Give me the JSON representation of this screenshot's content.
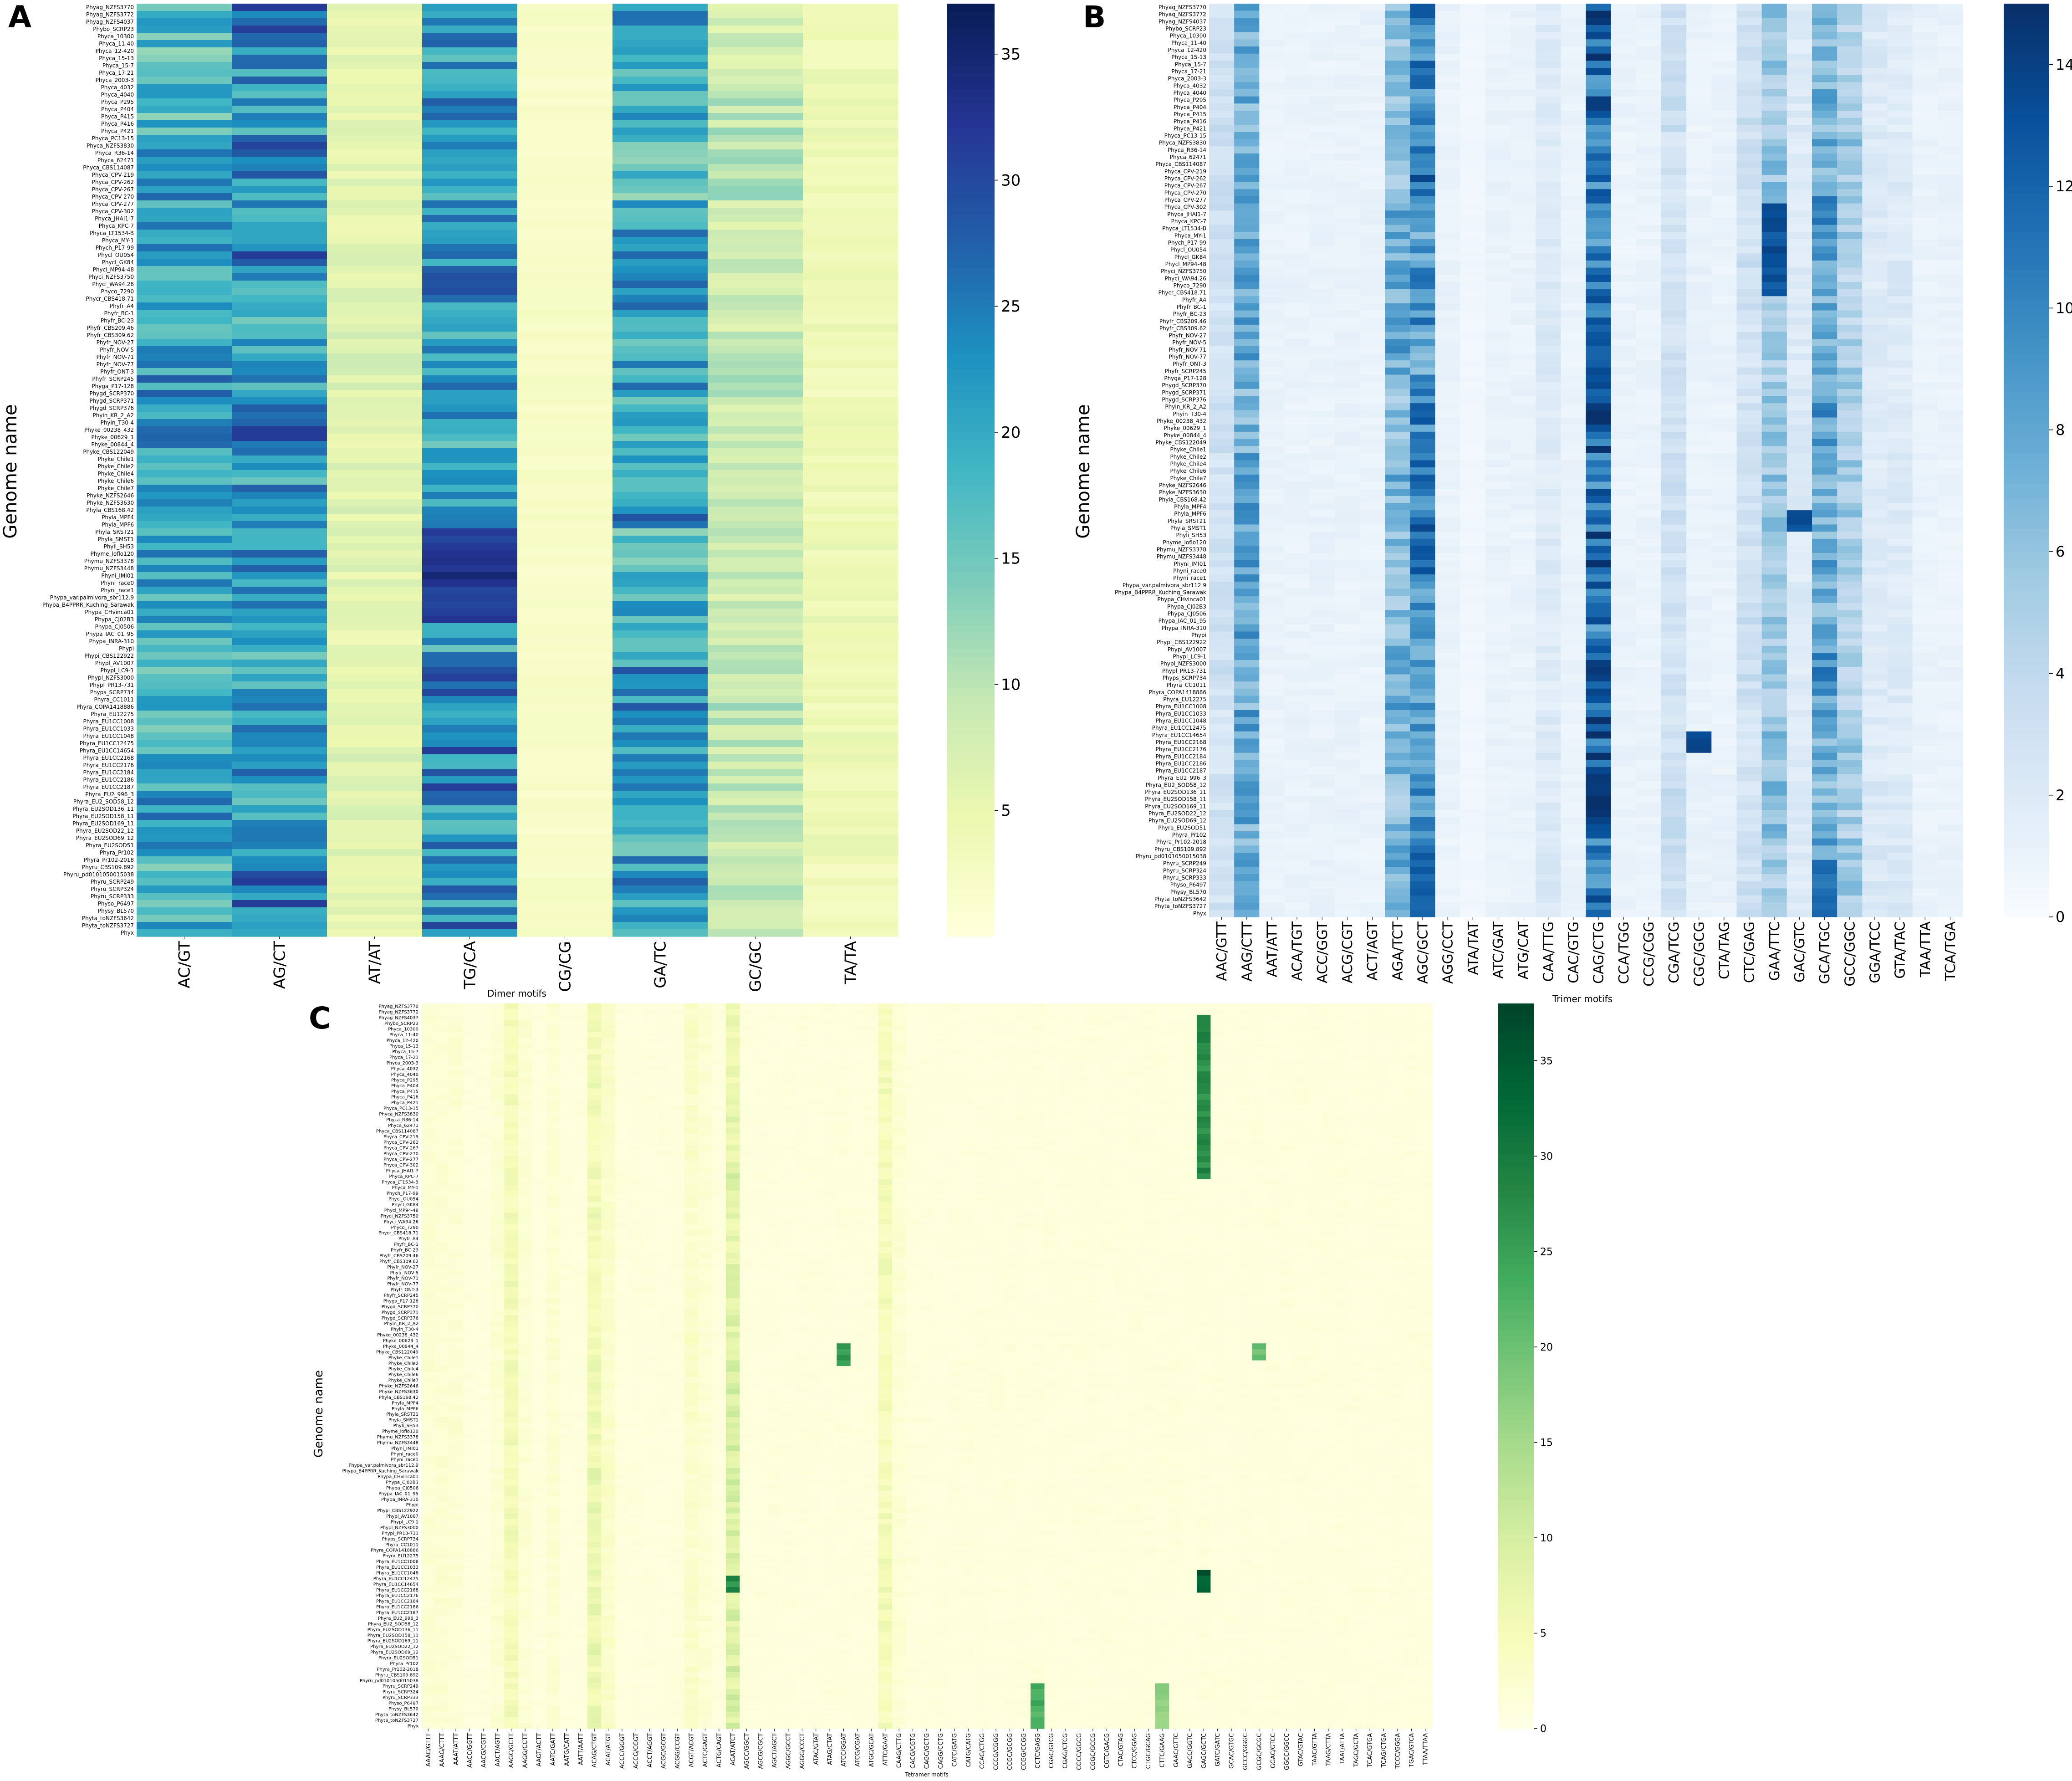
{
  "figure": {
    "panels": [
      {
        "letter": "A",
        "xlabel": "Dimer motifs",
        "ylabel": "Genome name"
      },
      {
        "letter": "B",
        "xlabel": "Trimer motifs",
        "ylabel": "Genome name"
      },
      {
        "letter": "C",
        "xlabel": "Tetramer motifs",
        "ylabel": "Genome name"
      }
    ]
  },
  "chart_data": [
    {
      "type": "heatmap",
      "panel": "A",
      "colormap": "YlGnBu",
      "colors": [
        "#ffffd9",
        "#edf8b1",
        "#c7e9b4",
        "#7fcdbb",
        "#41b6c4",
        "#1d91c0",
        "#225ea8",
        "#253494",
        "#081d58"
      ],
      "xlabel": "Dimer motifs",
      "ylabel": "Genome name",
      "vmin": 0,
      "vmax": 37,
      "colorbar_ticks": [
        5,
        10,
        15,
        20,
        25,
        30,
        35
      ],
      "columns": [
        "AC/GT",
        "AG/CT",
        "AT/AT",
        "TG/CA",
        "CG/CG",
        "GA/TC",
        "GC/GC",
        "TA/TA"
      ],
      "column_baseline": [
        20,
        22,
        6,
        24,
        2,
        20,
        9,
        4
      ],
      "hotspots": [
        {
          "column": 3,
          "row_start": 72,
          "row_end": 84,
          "value": 35
        },
        {
          "column": 3,
          "row_start": 36,
          "row_end": 40,
          "value": 30
        },
        {
          "column": 0,
          "row_start": 160,
          "row_end": 162,
          "value": 30
        },
        {
          "column": 3,
          "row_start": 160,
          "row_end": 162,
          "value": 33
        }
      ]
    },
    {
      "type": "heatmap",
      "panel": "B",
      "colormap": "Blues",
      "colors": [
        "#f7fbff",
        "#deebf7",
        "#c6dbef",
        "#9ecae1",
        "#6baed6",
        "#4292c6",
        "#2171b5",
        "#08519c",
        "#08306b"
      ],
      "xlabel": "Trimer motifs",
      "ylabel": "Genome name",
      "vmin": 0,
      "vmax": 15,
      "colorbar_ticks": [
        0,
        2,
        4,
        6,
        8,
        10,
        12,
        14
      ],
      "columns": [
        "AAC/GTT",
        "AAG/CTT",
        "AAT/ATT",
        "ACA/TGT",
        "ACC/GGT",
        "ACG/CGT",
        "ACT/AGT",
        "AGA/TCT",
        "AGC/GCT",
        "AGG/CCT",
        "ATA/TAT",
        "ATC/GAT",
        "ATG/CAT",
        "CAA/TTG",
        "CAC/GTG",
        "CAG/CTG",
        "CCA/TGG",
        "CCG/CGG",
        "CGA/TCG",
        "CGC/GCG",
        "CTA/TAG",
        "CTC/GAG",
        "GAA/TTC",
        "GAC/GTC",
        "GCA/TGC",
        "GCC/GGC",
        "GGA/TCC",
        "GTA/TAC",
        "TAA/TTA",
        "TCA/TGA"
      ],
      "column_baseline": [
        3,
        8,
        1,
        1,
        1,
        1,
        1,
        7,
        10,
        1,
        0.5,
        1,
        1,
        2,
        1,
        12,
        1,
        1,
        3,
        1,
        1,
        3,
        6,
        2,
        8,
        5,
        2,
        2,
        1,
        1
      ],
      "hotspots": [
        {
          "column": 22,
          "row_start": 28,
          "row_end": 40,
          "value": 14
        },
        {
          "column": 19,
          "row_start": 102,
          "row_end": 104,
          "value": 15
        },
        {
          "column": 23,
          "row_start": 71,
          "row_end": 73,
          "value": 14
        },
        {
          "column": 15,
          "row_start": 45,
          "row_end": 55,
          "value": 14
        },
        {
          "column": 8,
          "row_start": 120,
          "row_end": 150,
          "value": 13
        },
        {
          "column": 24,
          "row_start": 120,
          "row_end": 150,
          "value": 12
        }
      ]
    },
    {
      "type": "heatmap",
      "panel": "C",
      "colormap": "YlGn",
      "colors": [
        "#ffffe5",
        "#f7fcb9",
        "#d9f0a3",
        "#addd8e",
        "#78c679",
        "#41ab5d",
        "#238443",
        "#006837",
        "#004529"
      ],
      "xlabel": "Tetramer motifs",
      "ylabel": "Genome name",
      "vmin": 0,
      "vmax": 38,
      "colorbar_ticks": [
        0,
        5,
        10,
        15,
        20,
        25,
        30,
        35
      ],
      "columns": [
        "AAAC/GTTT",
        "AAAG/CTTT",
        "AAAT/ATTT",
        "AACC/GGTT",
        "AACG/CGTT",
        "AACT/AGTT",
        "AAGC/GCTT",
        "AAGG/CCTT",
        "AAGT/ACTT",
        "AATC/GATT",
        "AATG/CATT",
        "AATT/AATT",
        "ACAG/CTGT",
        "ACAT/ATGT",
        "ACCC/GGGT",
        "ACCG/CGGT",
        "ACCT/AGGT",
        "ACGC/GCGT",
        "ACGG/CCGT",
        "ACGT/ACGT",
        "ACTC/GAGT",
        "ACTG/CAGT",
        "AGAT/ATCT",
        "AGCC/GGCT",
        "AGCG/CGCT",
        "AGCT/AGCT",
        "AGGC/GCCT",
        "AGGG/CCCT",
        "ATAC/GTAT",
        "ATAG/CTAT",
        "ATCC/GGAT",
        "ATCG/CGAT",
        "ATGC/GCAT",
        "ATTC/GAAT",
        "CAAG/CTTG",
        "CACG/CGTG",
        "CAGC/GCTG",
        "CAGG/CCTG",
        "CATC/GATG",
        "CATG/CATG",
        "CCAG/CTGG",
        "CCCG/CGGG",
        "CCGC/GCGG",
        "CCGG/CCGG",
        "CCTC/GAGG",
        "CGAC/GTCG",
        "CGAG/CTCG",
        "CGCC/GGCG",
        "CGGC/GCCG",
        "CGTC/GACG",
        "CTAC/GTAG",
        "CTCC/GGAG",
        "CTGC/GCAG",
        "CTTC/GAAG",
        "GAAC/GTTC",
        "GACC/GGTC",
        "GAGC/GCTC",
        "GATC/GATC",
        "GCAC/GTGC",
        "GCCC/GGGC",
        "GCGC/GCGC",
        "GGAC/GTCC",
        "GGCC/GGCC",
        "GTAC/GTAC",
        "TAAC/GTTA",
        "TAAG/CTTA",
        "TAAT/ATTA",
        "TAGC/GCTA",
        "TCAC/GTGA",
        "TCAG/CTGA",
        "TCCC/GGGA",
        "TGAC/GTCA",
        "TTAA/TTAA"
      ],
      "column_baseline": [
        2,
        2,
        2,
        1,
        1,
        2,
        5,
        2,
        1,
        2,
        1,
        1,
        6,
        3,
        1,
        1,
        1,
        1,
        1,
        3,
        2,
        1,
        8,
        1,
        1,
        1,
        1,
        1,
        1,
        1,
        1,
        1,
        1,
        5,
        2,
        1,
        1,
        1,
        1,
        1,
        1,
        1,
        1,
        1,
        1,
        1,
        1,
        1,
        1,
        1,
        1,
        1,
        1,
        1,
        1,
        1,
        1,
        1,
        1,
        1,
        1,
        1,
        1,
        1,
        1,
        1,
        1,
        1,
        1,
        1,
        1,
        1,
        1
      ],
      "hotspots": [
        {
          "column": 56,
          "row_start": 2,
          "row_end": 30,
          "value": 30
        },
        {
          "column": 56,
          "row_start": 100,
          "row_end": 103,
          "value": 38
        },
        {
          "column": 22,
          "row_start": 101,
          "row_end": 103,
          "value": 30
        },
        {
          "column": 30,
          "row_start": 60,
          "row_end": 63,
          "value": 28
        },
        {
          "column": 44,
          "row_start": 120,
          "row_end": 150,
          "value": 25
        },
        {
          "column": 53,
          "row_start": 120,
          "row_end": 150,
          "value": 18
        },
        {
          "column": 60,
          "row_start": 60,
          "row_end": 62,
          "value": 22
        }
      ]
    }
  ],
  "row_labels": {
    "A": [
      "Phyag_NZFS3770",
      "Phyag_NZFS3772",
      "Phyag_NZFS4037",
      "Phybo_SCRP23",
      "Phyca_10300",
      "Phyca_11-40",
      "Phyca_12-420",
      "Phyca_15-13",
      "Phyca_15-7",
      "Phyca_17-21",
      "Phyca_2003-3",
      "Phyca_4032",
      "Phyca_4040",
      "Phyca_P295",
      "Phyca_P404",
      "Phyca_P415",
      "Phyca_P416",
      "Phyca_P421",
      "Phyca_PC13-15",
      "Phyca_NZFS3830",
      "Phyca_R36-14",
      "Phyca_62471",
      "Phyca_CBS114087",
      "Phyca_CPV-219",
      "Phyca_CPV-262",
      "Phyca_CPV-267",
      "Phyca_CPV-270",
      "Phyca_CPV-277",
      "Phyca_CPV-302",
      "Phyca_JHAI1-7",
      "Phyca_KPC-7",
      "Phyca_LT1534-B",
      "Phyca_MY-1",
      "Phych_P17-99",
      "Phycl_OU054",
      "Phycl_GK84",
      "Phycl_MP94-48",
      "Phyci_NZFS3750",
      "Phyci_WA94.26",
      "Phyco_7290",
      "Phycr_CBS418.71",
      "Phyfr_A4",
      "Phyfr_BC-1",
      "Phyfr_BC-23",
      "Phyfr_CBS209.46",
      "Phyfr_CBS309.62",
      "Phyfr_NOV-27",
      "Phyfr_NOV-5",
      "Phyfr_NOV-71",
      "Phyfr_NOV-77",
      "Phyfr_ONT-3",
      "Phyfr_SCRP245",
      "Phyga_P17-128",
      "Phygd_SCRP370",
      "Phygd_SCRP371",
      "Phygd_SCRP376",
      "Phyin_KR_2_A2",
      "Phyin_T30-4",
      "Phyke_00238_432",
      "Phyke_00629_1",
      "Phyke_00844_4",
      "Phyke_CBS122049",
      "Phyke_Chile1",
      "Phyke_Chile2",
      "Phyke_Chile4",
      "Phyke_Chile6",
      "Phyke_Chile7",
      "Phyke_NZFS2646",
      "Phyke_NZFS3630",
      "Phyla_CBS168.42",
      "Phyla_MPF4",
      "Phyla_MPF6",
      "Phyla_SRST21",
      "Phyla_SMST1",
      "Phyli_SH53",
      "Phyme_loflo120",
      "Phymu_NZFS3378",
      "Phymu_NZFS3448",
      "Phyni_IMI01",
      "Phyni_race0",
      "Phyni_race1",
      "Phypa_var.palmivora_sbr112.9",
      "Phypa_B4PPRR_Kuching_Sarawak",
      "Phypa_CHvinca01",
      "Phypa_CJ02B3",
      "Phypa_CJ0506",
      "Phypa_IAC_01_95",
      "Phypa_INRA-310",
      "Phypi",
      "Phypi_CBS122922",
      "Phypl_AV1007",
      "Phypl_LC9-1",
      "Phypl_NZFS3000",
      "Phypl_PR13-731",
      "Phyps_SCRP734",
      "Phyra_CC1011",
      "Phyra_COPA1418886",
      "Phyra_EU12275",
      "Phyra_EU1CC1008",
      "Phyra_EU1CC1033",
      "Phyra_EU1CC1048",
      "Phyra_EU1CC12475",
      "Phyra_EU1CC14654",
      "Phyra_EU1CC2168",
      "Phyra_EU1CC2176",
      "Phyra_EU1CC2184",
      "Phyra_EU1CC2186",
      "Phyra_EU1CC2187",
      "Phyra_EU2_996_3",
      "Phyra_EU2_SOD58_12",
      "Phyra_EU2SOD136_11",
      "Phyra_EU2SOD158_11",
      "Phyra_EU2SOD169_11",
      "Phyra_EU2SOD22_12",
      "Phyra_EU2SOD69_12",
      "Phyra_EU2SOD51",
      "Phyra_Pr102",
      "Phyra_Pr102-2018",
      "Phyru_CBS109.892",
      "Phyru_pd0101050015038",
      "Phyru_SCRP249",
      "Phyru_SCRP324",
      "Phyru_SCRP333",
      "Physo_P6497",
      "Physy_BL570",
      "Phyta_toNZFS3642",
      "Phyta_toNZFS3727",
      "Phyx"
    ]
  }
}
